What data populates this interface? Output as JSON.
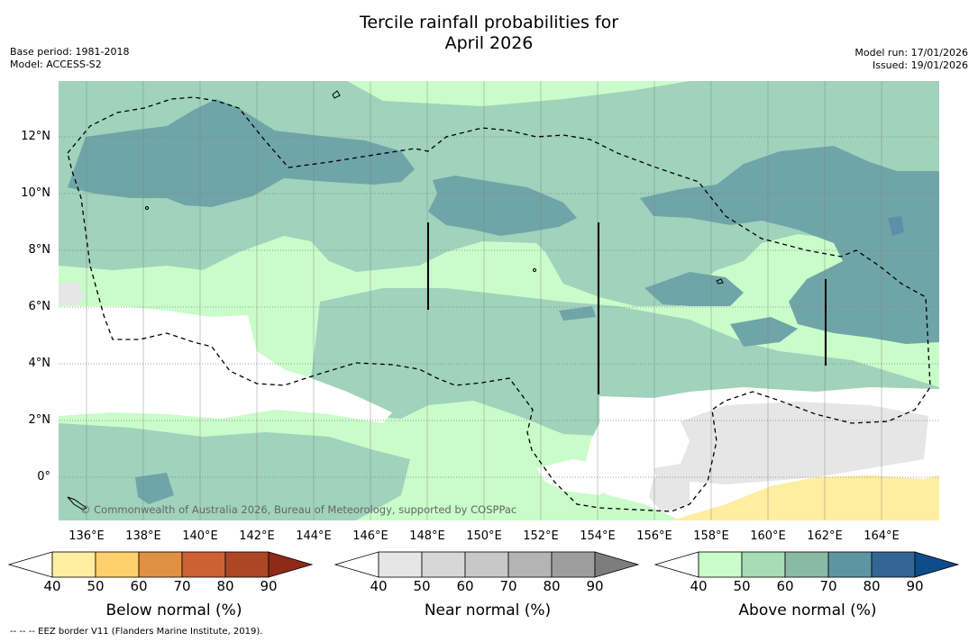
{
  "title": {
    "line1": "Tercile rainfall probabilities for",
    "line2": "April 2026"
  },
  "meta": {
    "base_period": "Base period: 1981-2018",
    "model": "Model: ACCESS-S2",
    "model_run": "Model run: 17/01/2026",
    "issued": "Issued: 19/01/2026"
  },
  "map": {
    "lat_labels": [
      "12°N",
      "10°N",
      "8°N",
      "6°N",
      "4°N",
      "2°N",
      "0°"
    ],
    "lon_labels": [
      "136°E",
      "138°E",
      "140°E",
      "142°E",
      "144°E",
      "146°E",
      "148°E",
      "150°E",
      "152°E",
      "154°E",
      "156°E",
      "158°E",
      "160°E",
      "162°E",
      "164°E"
    ],
    "copyright": "© Commonwealth of Australia 2026, Bureau of Meteorology, supported by COSPPac"
  },
  "colorbars": [
    {
      "label": "Below normal (%)",
      "ticks": [
        "40",
        "50",
        "60",
        "70",
        "80",
        "90"
      ],
      "colors": [
        "#ffffff",
        "#ffeda0",
        "#fed06b",
        "#e09042",
        "#cc6133",
        "#ac4625",
        "#8f2a18"
      ]
    },
    {
      "label": "Near normal (%)",
      "ticks": [
        "40",
        "50",
        "60",
        "70",
        "80",
        "90"
      ],
      "colors": [
        "#ffffff",
        "#e6e6e6",
        "#d7d7d7",
        "#c8c8c8",
        "#b4b4b4",
        "#9e9e9e",
        "#7d7d7d"
      ]
    },
    {
      "label": "Above normal (%)",
      "ticks": [
        "40",
        "50",
        "60",
        "70",
        "80",
        "90"
      ],
      "colors": [
        "#ffffff",
        "#c9fcc9",
        "#a7dcb6",
        "#8ab9a7",
        "#5e95a3",
        "#346594",
        "#0e4c8a"
      ]
    }
  ],
  "footer": "-- -- -- EEZ border V11 (Flanders Marine Institute, 2019)."
}
